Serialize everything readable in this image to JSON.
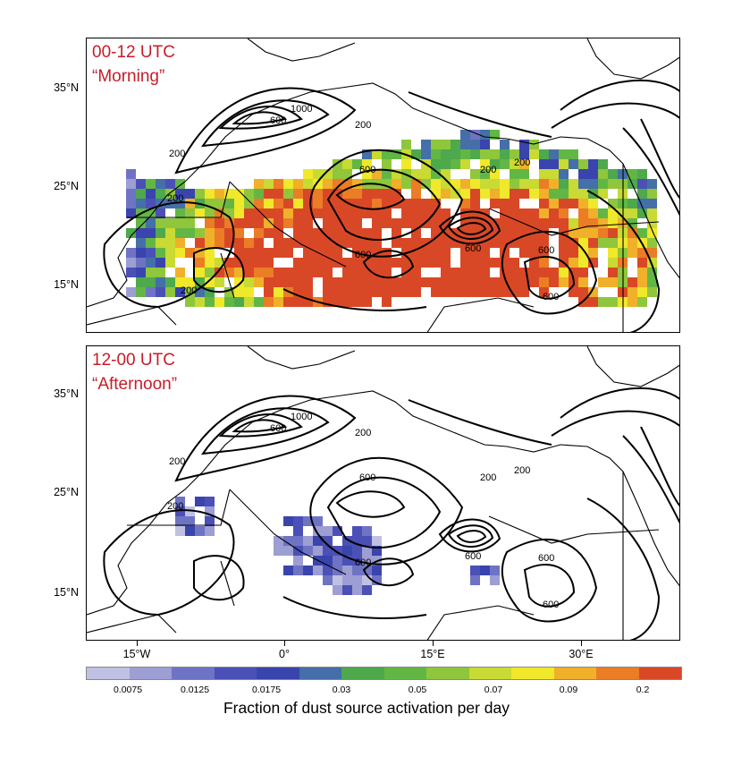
{
  "panels": [
    {
      "title_line1": "00-12 UTC",
      "title_line2": "“Morning”"
    },
    {
      "title_line1": "12-00 UTC",
      "title_line2": "“Afternoon”"
    }
  ],
  "latitude_labels": [
    "35°N",
    "25°N",
    "15°N"
  ],
  "longitude_labels": [
    "15°W",
    "0°",
    "15°E",
    "30°E"
  ],
  "contour_labels": {
    "top": [
      "200",
      "600",
      "1000",
      "200",
      "200",
      "600",
      "200",
      "600",
      "600",
      "200",
      "600",
      "600",
      "200"
    ],
    "bottom": [
      "200",
      "600",
      "1000",
      "200",
      "200",
      "600",
      "200",
      "600",
      "600",
      "200",
      "600",
      "600"
    ]
  },
  "colorbar": {
    "colors": [
      "#bfc0e2",
      "#9c9ed4",
      "#6f73c4",
      "#4b50b6",
      "#3a44ad",
      "#456fa8",
      "#4ea84c",
      "#62b744",
      "#8fc63c",
      "#c8da33",
      "#f0e82a",
      "#f0b02a",
      "#ea7d26",
      "#d94826"
    ],
    "tick_labels": [
      "0.0075",
      "0.0125",
      "0.0175",
      "0.03",
      "0.05",
      "0.07",
      "0.09",
      "0.2"
    ],
    "title": "Fraction of dust source activation per day"
  },
  "dust_fields": {
    "morning_intensity": "high",
    "afternoon_intensity": "low"
  }
}
